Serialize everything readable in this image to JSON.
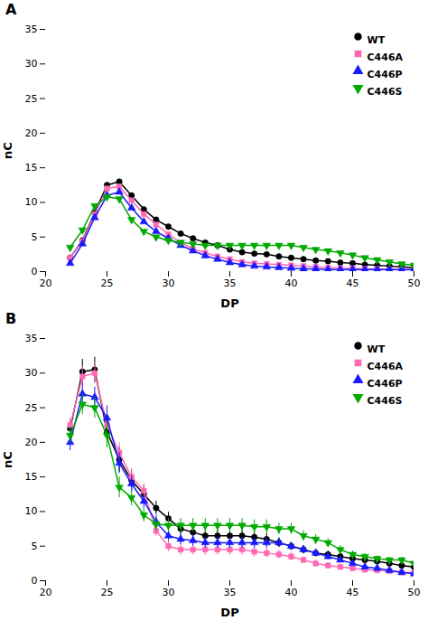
{
  "chart_data": [
    {
      "type": "line",
      "title": "A",
      "xlabel": "DP",
      "ylabel": "nC",
      "x": [
        22,
        23,
        24,
        25,
        26,
        27,
        28,
        29,
        30,
        31,
        32,
        33,
        34,
        35,
        36,
        37,
        38,
        39,
        40,
        41,
        42,
        43,
        44,
        45,
        46,
        47,
        48,
        49,
        50
      ],
      "series": [
        {
          "name": "WT",
          "color": "#000000",
          "marker": "circle",
          "values": [
            2.0,
            4.5,
            8.5,
            12.5,
            13.0,
            11.0,
            9.0,
            7.5,
            6.5,
            5.5,
            4.8,
            4.2,
            3.8,
            3.2,
            2.8,
            2.6,
            2.5,
            2.2,
            2.0,
            1.8,
            1.6,
            1.5,
            1.3,
            1.2,
            1.0,
            0.9,
            0.8,
            0.7,
            0.6
          ]
        },
        {
          "name": "C446A",
          "color": "#FF69B4",
          "marker": "square",
          "values": [
            2.0,
            4.4,
            8.3,
            12.0,
            12.3,
            10.3,
            8.3,
            6.8,
            5.4,
            4.2,
            3.3,
            2.7,
            2.2,
            1.8,
            1.4,
            1.2,
            1.1,
            1.0,
            0.9,
            0.8,
            0.7,
            0.6,
            0.5,
            0.5,
            0.4,
            0.4,
            0.3,
            0.3,
            0.3
          ]
        },
        {
          "name": "C446P",
          "color": "#1A1AFF",
          "marker": "triangle-up",
          "values": [
            1.2,
            4.0,
            7.8,
            11.0,
            11.5,
            9.2,
            7.2,
            5.8,
            4.8,
            3.8,
            3.0,
            2.3,
            1.8,
            1.3,
            1.0,
            0.8,
            0.7,
            0.6,
            0.5,
            0.4,
            0.4,
            0.3,
            0.3,
            0.3,
            0.3,
            0.3,
            0.3,
            0.3,
            0.3
          ]
        },
        {
          "name": "C446S",
          "color": "#00AA00",
          "marker": "triangle-down",
          "values": [
            3.5,
            6.0,
            9.5,
            10.8,
            10.5,
            7.5,
            5.8,
            5.0,
            4.5,
            4.2,
            4.0,
            3.8,
            3.8,
            3.8,
            3.8,
            3.8,
            3.8,
            3.8,
            3.8,
            3.5,
            3.2,
            3.0,
            2.7,
            2.4,
            2.0,
            1.7,
            1.4,
            1.1,
            0.9
          ]
        }
      ],
      "xlim": [
        20,
        50
      ],
      "ylim": [
        0,
        35
      ],
      "xticks": [
        20,
        25,
        30,
        35,
        40,
        45,
        50
      ],
      "yticks": [
        0,
        5,
        10,
        15,
        20,
        25,
        30,
        35
      ],
      "legend": "upper right",
      "grid": false
    },
    {
      "type": "line",
      "title": "B",
      "xlabel": "DP",
      "ylabel": "nC",
      "x": [
        22,
        23,
        24,
        25,
        26,
        27,
        28,
        29,
        30,
        31,
        32,
        33,
        34,
        35,
        36,
        37,
        38,
        39,
        40,
        41,
        42,
        43,
        44,
        45,
        46,
        47,
        48,
        49,
        50
      ],
      "series": [
        {
          "name": "WT",
          "color": "#000000",
          "marker": "circle",
          "values": [
            22.0,
            30.2,
            30.5,
            21.5,
            17.5,
            14.5,
            12.5,
            10.5,
            9.0,
            7.5,
            7.0,
            6.5,
            6.5,
            6.5,
            6.5,
            6.3,
            6.0,
            5.5,
            5.0,
            4.5,
            4.0,
            3.8,
            3.5,
            3.2,
            3.0,
            2.8,
            2.5,
            2.2,
            2.0
          ],
          "yerr": [
            1.2,
            1.8,
            1.8,
            2.0,
            1.8,
            1.5,
            1.2,
            1.0,
            0.9,
            0.8,
            0.8,
            0.8,
            0.8,
            0.8,
            0.8,
            0.8,
            0.8,
            0.7,
            0.6,
            0.6,
            0.5,
            0.5,
            0.5,
            0.4,
            0.4,
            0.4,
            0.4,
            0.4,
            0.4
          ]
        },
        {
          "name": "C446A",
          "color": "#FF69B4",
          "marker": "square",
          "values": [
            22.5,
            29.5,
            30.0,
            22.5,
            18.5,
            15.0,
            13.0,
            7.2,
            5.0,
            4.5,
            4.5,
            4.5,
            4.5,
            4.5,
            4.5,
            4.2,
            4.0,
            3.8,
            3.5,
            3.0,
            2.5,
            2.2,
            2.0,
            1.8,
            1.6,
            1.5,
            1.4,
            1.2,
            1.2
          ],
          "yerr": [
            1.0,
            1.5,
            1.5,
            1.8,
            1.5,
            1.2,
            1.0,
            0.8,
            0.8,
            0.8,
            0.8,
            0.8,
            0.8,
            0.8,
            0.8,
            0.8,
            0.7,
            0.6,
            0.6,
            0.5,
            0.5,
            0.4,
            0.4,
            0.4,
            0.4,
            0.4,
            0.4,
            0.4,
            0.4
          ]
        },
        {
          "name": "C446P",
          "color": "#1A1AFF",
          "marker": "triangle-up",
          "values": [
            20.0,
            27.0,
            26.5,
            23.5,
            17.0,
            14.0,
            11.5,
            8.5,
            6.5,
            6.0,
            5.8,
            5.5,
            5.5,
            5.5,
            5.5,
            5.5,
            5.5,
            5.5,
            5.0,
            4.5,
            4.0,
            3.5,
            3.0,
            2.5,
            2.0,
            1.8,
            1.5,
            1.2,
            1.0
          ],
          "yerr": [
            1.2,
            1.5,
            1.5,
            1.8,
            1.5,
            1.2,
            1.0,
            0.9,
            0.8,
            0.8,
            0.8,
            0.8,
            0.8,
            0.8,
            0.8,
            0.8,
            0.8,
            0.6,
            0.6,
            0.5,
            0.5,
            0.5,
            0.4,
            0.4,
            0.4,
            0.4,
            0.4,
            0.4,
            0.4
          ]
        },
        {
          "name": "C446S",
          "color": "#00AA00",
          "marker": "triangle-down",
          "values": [
            21.0,
            25.5,
            25.0,
            21.0,
            13.5,
            12.0,
            9.5,
            8.2,
            8.0,
            8.0,
            8.0,
            8.0,
            8.0,
            8.0,
            8.0,
            7.8,
            7.8,
            7.5,
            7.5,
            6.5,
            6.0,
            5.5,
            4.5,
            3.8,
            3.5,
            3.2,
            3.0,
            3.0,
            2.5
          ],
          "yerr": [
            1.2,
            1.5,
            1.5,
            1.8,
            1.5,
            1.2,
            1.0,
            1.0,
            1.0,
            1.0,
            1.0,
            1.0,
            1.0,
            1.0,
            1.0,
            1.0,
            1.0,
            0.8,
            0.8,
            0.7,
            0.7,
            0.6,
            0.6,
            0.5,
            0.4,
            0.4,
            0.4,
            0.4,
            0.4
          ]
        }
      ],
      "xlim": [
        20,
        50
      ],
      "ylim": [
        0,
        35
      ],
      "xticks": [
        20,
        25,
        30,
        35,
        40,
        45,
        50
      ],
      "yticks": [
        0,
        5,
        10,
        15,
        20,
        25,
        30,
        35
      ],
      "legend": "upper right",
      "grid": false
    }
  ]
}
